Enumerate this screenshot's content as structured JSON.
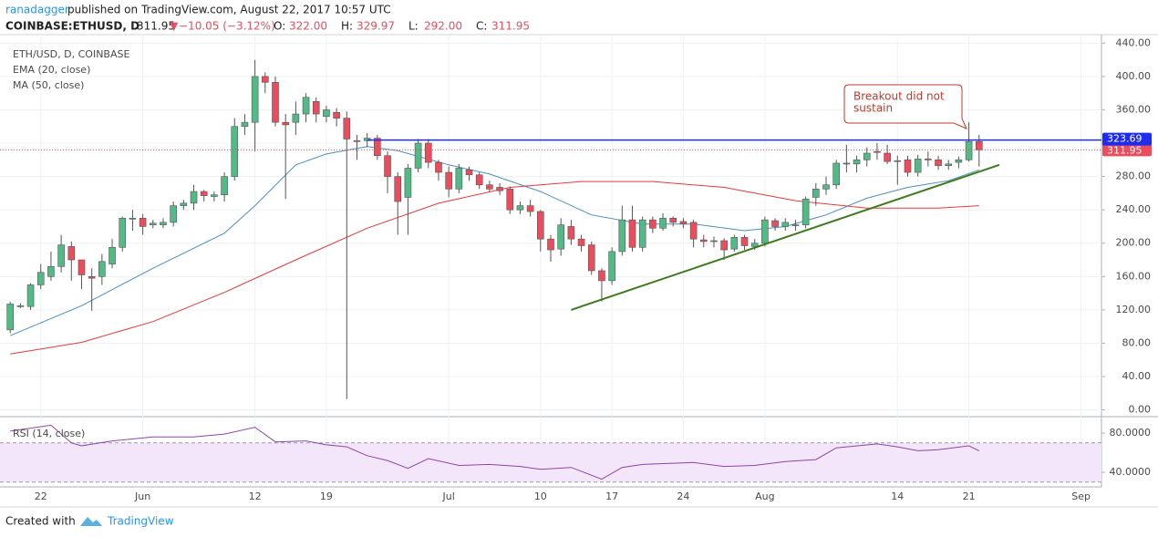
{
  "header": {
    "author": "ranadagger",
    "published": " published on TradingView.com, August 22, 2017 10:57 UTC",
    "symbol": "COINBASE:ETHUSD, D",
    "last": "311.95",
    "arrow": "▼",
    "change": "−10.05 (−3.12%)",
    "ohlc": [
      [
        "O:",
        "322.00"
      ],
      [
        "H:",
        "329.97"
      ],
      [
        "L:",
        "292.00"
      ],
      [
        "C:",
        "311.95"
      ]
    ]
  },
  "chart_data": [
    {
      "type": "candlestick",
      "x": [
        "2017-05-19",
        "2017-05-20",
        "2017-05-21",
        "2017-05-22",
        "2017-05-23",
        "2017-05-24",
        "2017-05-25",
        "2017-05-26",
        "2017-05-27",
        "2017-05-28",
        "2017-05-29",
        "2017-05-30",
        "2017-05-31",
        "2017-06-01",
        "2017-06-02",
        "2017-06-03",
        "2017-06-04",
        "2017-06-05",
        "2017-06-06",
        "2017-06-07",
        "2017-06-08",
        "2017-06-09",
        "2017-06-10",
        "2017-06-11",
        "2017-06-12",
        "2017-06-13",
        "2017-06-14",
        "2017-06-15",
        "2017-06-16",
        "2017-06-17",
        "2017-06-18",
        "2017-06-19",
        "2017-06-20",
        "2017-06-21",
        "2017-06-22",
        "2017-06-23",
        "2017-06-24",
        "2017-06-25",
        "2017-06-26",
        "2017-06-27",
        "2017-06-28",
        "2017-06-29",
        "2017-06-30",
        "2017-07-01",
        "2017-07-02",
        "2017-07-03",
        "2017-07-04",
        "2017-07-05",
        "2017-07-06",
        "2017-07-07",
        "2017-07-08",
        "2017-07-09",
        "2017-07-10",
        "2017-07-11",
        "2017-07-12",
        "2017-07-13",
        "2017-07-14",
        "2017-07-15",
        "2017-07-16",
        "2017-07-17",
        "2017-07-18",
        "2017-07-19",
        "2017-07-20",
        "2017-07-21",
        "2017-07-22",
        "2017-07-23",
        "2017-07-24",
        "2017-07-25",
        "2017-07-26",
        "2017-07-27",
        "2017-07-28",
        "2017-07-29",
        "2017-07-30",
        "2017-07-31",
        "2017-08-01",
        "2017-08-02",
        "2017-08-03",
        "2017-08-04",
        "2017-08-05",
        "2017-08-06",
        "2017-08-07",
        "2017-08-08",
        "2017-08-09",
        "2017-08-10",
        "2017-08-11",
        "2017-08-12",
        "2017-08-13",
        "2017-08-14",
        "2017-08-15",
        "2017-08-16",
        "2017-08-17",
        "2017-08-18",
        "2017-08-19",
        "2017-08-20",
        "2017-08-21",
        "2017-08-22"
      ],
      "series": [
        {
          "name": "ETH/USD, D, COINBASE",
          "up_color": "#53b987",
          "down_color": "#eb4d5c",
          "open": [
            96,
            124,
            124,
            150,
            160,
            172,
            196,
            180,
            160,
            160,
            175,
            195,
            230,
            230,
            222,
            222,
            225,
            245,
            248,
            262,
            256,
            258,
            280,
            340,
            345,
            400,
            393,
            345,
            345,
            355,
            370,
            352,
            357,
            350,
            323,
            323,
            326,
            305,
            280,
            255,
            290,
            320,
            297,
            285,
            265,
            288,
            282,
            270,
            267,
            265,
            240,
            245,
            238,
            205,
            193,
            220,
            205,
            198,
            167,
            155,
            190,
            228,
            195,
            228,
            218,
            230,
            226,
            225,
            204,
            202,
            203,
            193,
            207,
            196,
            200,
            227,
            220,
            222,
            222,
            255,
            265,
            270,
            296,
            295,
            300,
            310,
            308,
            298,
            300,
            285,
            301,
            300,
            293,
            297,
            300,
            322
          ],
          "high": [
            130,
            128,
            152,
            175,
            190,
            210,
            202,
            180,
            170,
            187,
            205,
            232,
            240,
            235,
            228,
            230,
            250,
            252,
            270,
            264,
            262,
            285,
            350,
            355,
            420,
            405,
            400,
            355,
            370,
            380,
            375,
            365,
            362,
            358,
            330,
            332,
            330,
            310,
            285,
            295,
            325,
            325,
            300,
            292,
            295,
            292,
            285,
            275,
            272,
            268,
            250,
            252,
            240,
            210,
            230,
            228,
            210,
            202,
            170,
            195,
            245,
            245,
            232,
            232,
            236,
            232,
            230,
            228,
            210,
            208,
            206,
            210,
            210,
            205,
            232,
            230,
            230,
            228,
            256,
            272,
            280,
            300,
            318,
            305,
            315,
            320,
            318,
            305,
            305,
            306,
            310,
            305,
            300,
            304,
            345,
            329.97
          ],
          "low": [
            92,
            122,
            120,
            145,
            155,
            165,
            155,
            145,
            119,
            150,
            170,
            190,
            215,
            210,
            218,
            218,
            220,
            240,
            240,
            250,
            250,
            250,
            275,
            330,
            310,
            380,
            340,
            253,
            330,
            345,
            345,
            345,
            340,
            13,
            300,
            315,
            300,
            260,
            210,
            210,
            285,
            290,
            275,
            255,
            260,
            275,
            265,
            262,
            258,
            235,
            235,
            232,
            190,
            178,
            185,
            198,
            190,
            162,
            130,
            150,
            185,
            190,
            190,
            212,
            215,
            220,
            218,
            195,
            195,
            195,
            180,
            190,
            192,
            192,
            196,
            215,
            215,
            215,
            218,
            245,
            258,
            265,
            285,
            285,
            292,
            300,
            295,
            270,
            280,
            280,
            292,
            288,
            288,
            290,
            298,
            292
          ],
          "close": [
            127,
            125,
            150,
            165,
            172,
            198,
            180,
            162,
            158,
            178,
            195,
            230,
            230,
            220,
            224,
            225,
            245,
            248,
            262,
            257,
            258,
            280,
            340,
            345,
            400,
            393,
            345,
            342,
            355,
            375,
            355,
            360,
            350,
            325,
            322,
            326,
            305,
            280,
            250,
            290,
            320,
            297,
            285,
            265,
            290,
            282,
            270,
            265,
            263,
            240,
            245,
            238,
            205,
            192,
            222,
            205,
            197,
            167,
            155,
            190,
            228,
            195,
            228,
            218,
            230,
            225,
            223,
            205,
            202,
            203,
            192,
            207,
            197,
            200,
            228,
            220,
            225,
            222,
            253,
            265,
            270,
            296,
            295,
            300,
            308,
            309,
            298,
            299,
            285,
            301,
            300,
            293,
            295,
            300,
            322,
            311.95
          ]
        }
      ],
      "lines": [
        {
          "name": "EMA (20, close)",
          "color": "#4a8ec2",
          "x": [
            "2017-05-19",
            "2017-05-26",
            "2017-06-02",
            "2017-06-09",
            "2017-06-12",
            "2017-06-16",
            "2017-06-19",
            "2017-06-23",
            "2017-06-26",
            "2017-07-01",
            "2017-07-05",
            "2017-07-10",
            "2017-07-15",
            "2017-07-20",
            "2017-07-25",
            "2017-07-30",
            "2017-08-03",
            "2017-08-07",
            "2017-08-11",
            "2017-08-15",
            "2017-08-19",
            "2017-08-22"
          ],
          "values": [
            89,
            125,
            170,
            212,
            245,
            294,
            307,
            316,
            311,
            294,
            283,
            262,
            234,
            223,
            223,
            215,
            220,
            234,
            254,
            267,
            275,
            288
          ]
        },
        {
          "name": "MA (50, close)",
          "color": "#e8383d",
          "x": [
            "2017-05-19",
            "2017-05-26",
            "2017-06-02",
            "2017-06-09",
            "2017-06-16",
            "2017-06-23",
            "2017-06-30",
            "2017-07-07",
            "2017-07-14",
            "2017-07-21",
            "2017-07-28",
            "2017-08-04",
            "2017-08-11",
            "2017-08-18",
            "2017-08-22"
          ],
          "values": [
            67,
            81,
            106,
            141,
            180,
            218,
            248,
            267,
            274,
            274,
            267,
            251,
            242,
            242,
            245
          ]
        }
      ],
      "trendline": {
        "color": "#3e7b1c",
        "x": [
          "2017-07-13",
          "2017-08-24"
        ],
        "values": [
          120,
          294
        ]
      },
      "horizontal_line": {
        "value": 323.69,
        "x": "2017-06-23",
        "color": "#1e2cf0"
      },
      "annotation": {
        "lines": [
          "Breakout did not",
          "sustain"
        ],
        "color": "#c0392b"
      },
      "xlim": [
        "2017-05-18",
        "2017-09-03"
      ],
      "xticks": [
        {
          "value": "2017-05-22",
          "label": "22"
        },
        {
          "value": "2017-06-01",
          "label": "Jun"
        },
        {
          "value": "2017-06-12",
          "label": "12"
        },
        {
          "value": "2017-06-19",
          "label": "19"
        },
        {
          "value": "2017-07-01",
          "label": "Jul"
        },
        {
          "value": "2017-07-10",
          "label": "10"
        },
        {
          "value": "2017-07-17",
          "label": "17"
        },
        {
          "value": "2017-07-24",
          "label": "24"
        },
        {
          "value": "2017-08-01",
          "label": "Aug"
        },
        {
          "value": "2017-08-14",
          "label": "14"
        },
        {
          "value": "2017-08-21",
          "label": "21"
        },
        {
          "value": "2017-09-01",
          "label": "Sep"
        }
      ],
      "ylim": [
        -7,
        448
      ],
      "yticks": [
        {
          "value": 0,
          "label": "0.00"
        },
        {
          "value": 40,
          "label": "40.00"
        },
        {
          "value": 80,
          "label": "80.00"
        },
        {
          "value": 120,
          "label": "120.00"
        },
        {
          "value": 160,
          "label": "160.00"
        },
        {
          "value": 200,
          "label": "200.00"
        },
        {
          "value": 240,
          "label": "240.00"
        },
        {
          "value": 280,
          "label": "280.00"
        },
        {
          "value": 320,
          "label": "320.00"
        },
        {
          "value": 360,
          "label": "360.00"
        },
        {
          "value": 400,
          "label": "400.00"
        },
        {
          "value": 440,
          "label": "440.00"
        }
      ],
      "grid": true
    },
    {
      "type": "line",
      "series": [
        {
          "name": "RSI (14, close)",
          "color": "#8e44ad",
          "x": [
            "2017-05-19",
            "2017-05-23",
            "2017-05-25",
            "2017-05-26",
            "2017-05-29",
            "2017-06-02",
            "2017-06-06",
            "2017-06-09",
            "2017-06-12",
            "2017-06-14",
            "2017-06-17",
            "2017-06-19",
            "2017-06-21",
            "2017-06-23",
            "2017-06-25",
            "2017-06-27",
            "2017-06-29",
            "2017-07-02",
            "2017-07-05",
            "2017-07-08",
            "2017-07-10",
            "2017-07-13",
            "2017-07-16",
            "2017-07-18",
            "2017-07-20",
            "2017-07-25",
            "2017-07-28",
            "2017-07-31",
            "2017-08-03",
            "2017-08-06",
            "2017-08-08",
            "2017-08-12",
            "2017-08-14",
            "2017-08-16",
            "2017-08-18",
            "2017-08-21",
            "2017-08-22"
          ],
          "values": [
            82,
            88,
            70,
            67,
            72,
            76,
            76,
            79,
            86,
            71,
            72,
            68,
            66,
            57,
            52,
            44,
            54,
            47,
            48,
            46,
            43,
            45,
            33,
            45,
            48,
            50,
            46,
            47,
            51,
            53,
            65,
            69,
            66,
            62,
            63,
            67,
            62
          ]
        }
      ],
      "bands": [
        30,
        70
      ],
      "band_color": "#f3e6fb",
      "ylim": [
        27,
        94
      ],
      "yticks": [
        {
          "value": 40,
          "label": "40.0000"
        },
        {
          "value": 80,
          "label": "80.0000"
        }
      ]
    }
  ],
  "footer": {
    "created": "Created with",
    "brand": "TradingView"
  }
}
